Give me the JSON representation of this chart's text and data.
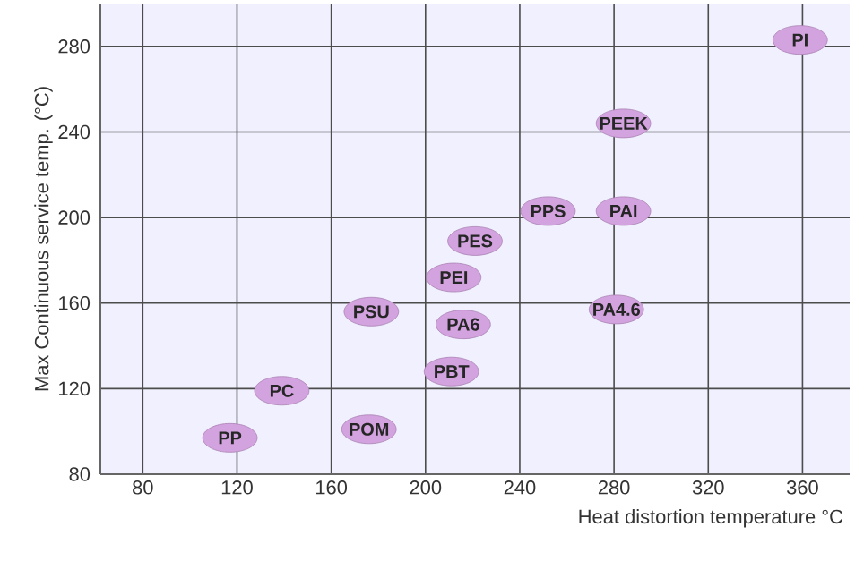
{
  "chart_data": {
    "type": "scatter",
    "xlabel": "Heat distortion temperature °C",
    "ylabel": "Max Continuous service temp. (°C)",
    "x": [
      359,
      284,
      252,
      284,
      221,
      212,
      177,
      216,
      281,
      211,
      139,
      117,
      176
    ],
    "values": [
      283,
      244,
      203,
      203,
      189,
      172,
      156,
      150,
      157,
      128,
      119,
      97,
      101
    ],
    "color": "#d3a3df",
    "grid": true,
    "xlim": [
      62,
      380
    ],
    "ylim": [
      80,
      300
    ],
    "xticks": [
      80,
      120,
      160,
      200,
      240,
      280,
      320,
      360
    ],
    "yticks": [
      80,
      120,
      160,
      200,
      240,
      280
    ],
    "annotations": [
      {
        "text": "PI",
        "x": 359,
        "y": 283
      },
      {
        "text": "PEEK",
        "x": 284,
        "y": 244
      },
      {
        "text": "PPS",
        "x": 252,
        "y": 203
      },
      {
        "text": "PAI",
        "x": 284,
        "y": 203
      },
      {
        "text": "PES",
        "x": 221,
        "y": 189
      },
      {
        "text": "PEI",
        "x": 212,
        "y": 172
      },
      {
        "text": "PSU",
        "x": 177,
        "y": 156
      },
      {
        "text": "PA6",
        "x": 216,
        "y": 150
      },
      {
        "text": "PA4.6",
        "x": 281,
        "y": 157
      },
      {
        "text": "PBT",
        "x": 211,
        "y": 128
      },
      {
        "text": "PC",
        "x": 139,
        "y": 119
      },
      {
        "text": "PP",
        "x": 117,
        "y": 97
      },
      {
        "text": "POM",
        "x": 176,
        "y": 101
      }
    ]
  }
}
